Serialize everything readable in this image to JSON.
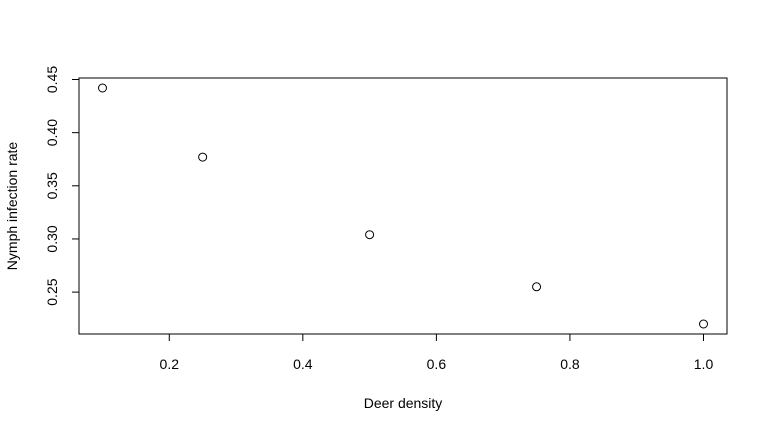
{
  "chart_data": {
    "type": "scatter",
    "title": "",
    "xlabel": "Deer density",
    "ylabel": "Nymph infection rate",
    "xlim": [
      0.1,
      1.0
    ],
    "ylim": [
      0.22,
      0.442
    ],
    "x_ticks": [
      "0.2",
      "0.4",
      "0.6",
      "0.8",
      "1.0"
    ],
    "y_ticks": [
      "0.25",
      "0.30",
      "0.35",
      "0.40",
      "0.45"
    ],
    "grid": false,
    "legend": "none",
    "marker": "open-circle",
    "point_color": "#000000",
    "points": [
      {
        "x": 0.1,
        "y": 0.442
      },
      {
        "x": 0.25,
        "y": 0.377
      },
      {
        "x": 0.5,
        "y": 0.304
      },
      {
        "x": 0.75,
        "y": 0.255
      },
      {
        "x": 1.0,
        "y": 0.22
      }
    ]
  }
}
